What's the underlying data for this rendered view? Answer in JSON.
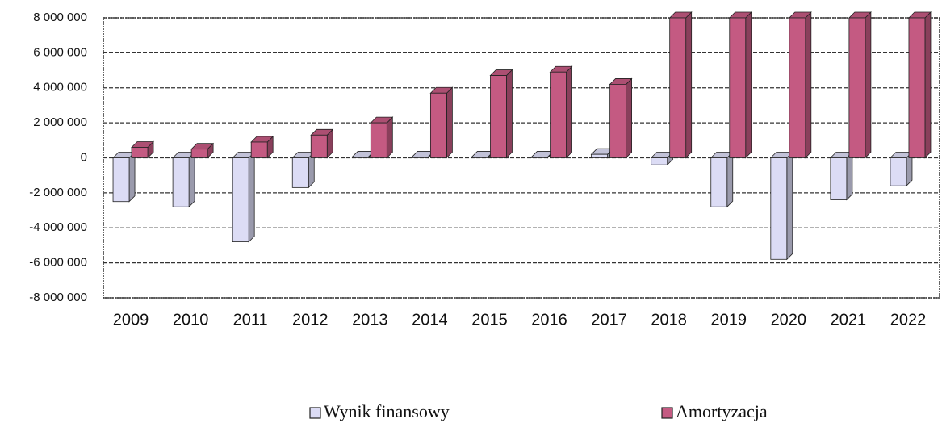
{
  "chart_data": {
    "type": "bar3d",
    "categories": [
      "2009",
      "2010",
      "2011",
      "2012",
      "2013",
      "2014",
      "2015",
      "2016",
      "2017",
      "2018",
      "2019",
      "2020",
      "2021",
      "2022"
    ],
    "series": [
      {
        "name": "Wynik finansowy",
        "color": "#dcdcf5",
        "values": [
          -2500000,
          -2800000,
          -4800000,
          -1700000,
          50000,
          50000,
          50000,
          50000,
          200000,
          -400000,
          -2800000,
          -5800000,
          -2400000,
          -1600000
        ]
      },
      {
        "name": "Amortyzacja",
        "color": "#c45a82",
        "values": [
          600000,
          500000,
          900000,
          1300000,
          2000000,
          3700000,
          4700000,
          4900000,
          4200000,
          8000000,
          8000000,
          8000000,
          8000000,
          8000000
        ]
      }
    ],
    "ylim": [
      -8000000,
      8000000
    ],
    "yticks": [
      {
        "value": 8000000,
        "label": "8 000 000"
      },
      {
        "value": 6000000,
        "label": "6 000 000"
      },
      {
        "value": 4000000,
        "label": "4 000 000"
      },
      {
        "value": 2000000,
        "label": "2 000 000"
      },
      {
        "value": 0,
        "label": "0"
      },
      {
        "value": -2000000,
        "label": "-2 000 000"
      },
      {
        "value": -4000000,
        "label": "-4 000 000"
      },
      {
        "value": -6000000,
        "label": "-6 000 000"
      },
      {
        "value": -8000000,
        "label": "-8 000 000"
      }
    ],
    "grid": true
  }
}
